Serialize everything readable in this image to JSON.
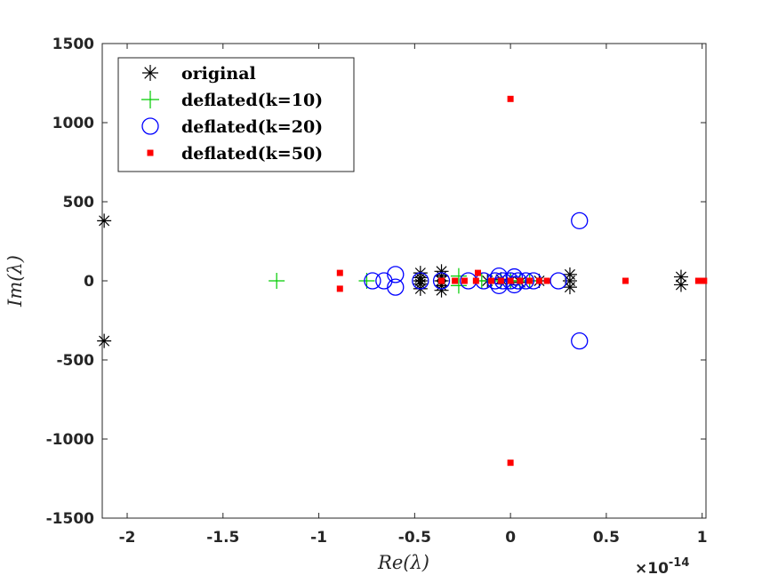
{
  "chart_data": {
    "type": "scatter",
    "title": "",
    "xlabel_prefix": "Re(",
    "xlabel_symbol": "λ",
    "xlabel_suffix": ")",
    "ylabel_prefix": "Im(",
    "ylabel_symbol": "λ",
    "ylabel_suffix": ")",
    "x_exponent_base": "×10",
    "x_exponent": "-14",
    "xlim": [
      -2.13,
      1.02
    ],
    "ylim": [
      -1500,
      1500
    ],
    "xticks": [
      -2,
      -1.5,
      -1,
      -0.5,
      0,
      0.5,
      1
    ],
    "xtick_labels": [
      "-2",
      "-1.5",
      "-1",
      "-0.5",
      "0",
      "0.5",
      "1"
    ],
    "yticks": [
      1500,
      1000,
      500,
      0,
      -500,
      -1000,
      -1500
    ],
    "ytick_labels": [
      "1500",
      "1000",
      "500",
      "0",
      "-500",
      "-1000",
      "-1500"
    ],
    "grid": false,
    "legend_position": "top-left",
    "series": [
      {
        "name": "original",
        "marker": "asterisk",
        "color": "#000000",
        "points": [
          [
            -2.12,
            380
          ],
          [
            -2.12,
            -380
          ],
          [
            -0.47,
            50
          ],
          [
            -0.47,
            20
          ],
          [
            -0.47,
            0
          ],
          [
            -0.47,
            -20
          ],
          [
            -0.47,
            -50
          ],
          [
            -0.36,
            60
          ],
          [
            -0.36,
            30
          ],
          [
            -0.36,
            0
          ],
          [
            -0.36,
            -30
          ],
          [
            -0.36,
            -60
          ],
          [
            -0.12,
            0
          ],
          [
            -0.05,
            10
          ],
          [
            0.0,
            0
          ],
          [
            0.05,
            -10
          ],
          [
            0.15,
            0
          ],
          [
            0.31,
            40
          ],
          [
            0.31,
            0
          ],
          [
            0.31,
            -40
          ],
          [
            0.89,
            25
          ],
          [
            0.89,
            -25
          ]
        ]
      },
      {
        "name": "deflated(k=10)",
        "marker": "plus",
        "color": "#00cc00",
        "points": [
          [
            -1.22,
            0
          ],
          [
            -0.75,
            0
          ],
          [
            -0.27,
            30
          ],
          [
            -0.27,
            -30
          ],
          [
            -0.15,
            0
          ],
          [
            -0.1,
            0
          ],
          [
            -0.05,
            0
          ],
          [
            0.0,
            0
          ],
          [
            0.05,
            0
          ],
          [
            0.1,
            0
          ]
        ]
      },
      {
        "name": "deflated(k=20)",
        "marker": "circle",
        "color": "#0000ff",
        "points": [
          [
            0.36,
            380
          ],
          [
            0.36,
            -380
          ],
          [
            -0.6,
            40
          ],
          [
            -0.6,
            -40
          ],
          [
            -0.66,
            0
          ],
          [
            -0.72,
            0
          ],
          [
            -0.47,
            0
          ],
          [
            -0.36,
            0
          ],
          [
            -0.22,
            0
          ],
          [
            -0.14,
            0
          ],
          [
            -0.08,
            0
          ],
          [
            -0.04,
            0
          ],
          [
            0.0,
            0
          ],
          [
            0.04,
            0
          ],
          [
            0.08,
            0
          ],
          [
            0.12,
            0
          ],
          [
            0.25,
            0
          ],
          [
            -0.06,
            30
          ],
          [
            -0.06,
            -30
          ],
          [
            0.02,
            25
          ],
          [
            0.02,
            -25
          ]
        ]
      },
      {
        "name": "deflated(k=50)",
        "marker": "square",
        "color": "#ff0000",
        "points": [
          [
            0.0,
            1150
          ],
          [
            0.0,
            -1150
          ],
          [
            -0.89,
            50
          ],
          [
            -0.89,
            -50
          ],
          [
            -0.36,
            0
          ],
          [
            -0.29,
            0
          ],
          [
            -0.24,
            0
          ],
          [
            -0.18,
            0
          ],
          [
            -0.1,
            0
          ],
          [
            -0.05,
            0
          ],
          [
            0.0,
            0
          ],
          [
            0.05,
            0
          ],
          [
            0.1,
            0
          ],
          [
            0.15,
            0
          ],
          [
            0.19,
            0
          ],
          [
            0.6,
            0
          ],
          [
            0.98,
            0
          ],
          [
            1.01,
            0
          ],
          [
            -0.17,
            50
          ]
        ]
      }
    ]
  }
}
